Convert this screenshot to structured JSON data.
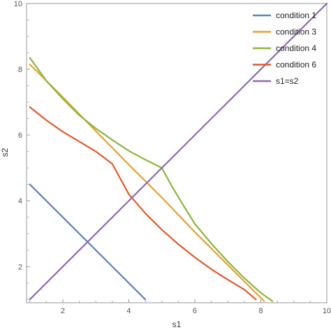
{
  "chart_data": {
    "type": "line",
    "title": "",
    "xlabel": "s1",
    "ylabel": "s2",
    "xlim": [
      0.9,
      10
    ],
    "ylim": [
      0.9,
      10
    ],
    "xticks": [
      2,
      4,
      6,
      8,
      10
    ],
    "yticks": [
      2,
      4,
      6,
      8,
      10
    ],
    "grid": false,
    "legend_position": "top-right",
    "series": [
      {
        "name": "condition 1",
        "color": "#5a82bd",
        "x": [
          1,
          4.5
        ],
        "y": [
          4.5,
          1
        ]
      },
      {
        "name": "condition 3",
        "color": "#e59f33",
        "x": [
          1,
          2.0,
          3.0,
          4.0,
          5.0,
          6.0,
          7.0,
          8.1
        ],
        "y": [
          8.15,
          7.15,
          6.12,
          5.1,
          4.1,
          3.05,
          2.05,
          0.95
        ]
      },
      {
        "name": "condition 4",
        "color": "#8bb63a",
        "x": [
          1,
          1.5,
          2.0,
          2.5,
          3.0,
          3.5,
          4.0,
          4.5,
          5.0,
          5.3,
          5.6,
          6.0,
          6.5,
          7.0,
          7.5,
          8.0,
          8.35
        ],
        "y": [
          8.35,
          7.65,
          7.1,
          6.6,
          6.2,
          5.85,
          5.52,
          5.25,
          5.0,
          4.45,
          3.95,
          3.3,
          2.7,
          2.15,
          1.65,
          1.2,
          0.95
        ]
      },
      {
        "name": "condition 6",
        "color": "#e3592b",
        "x": [
          1,
          1.5,
          2.0,
          2.5,
          3.0,
          3.5,
          4.0,
          4.5,
          5.0,
          5.5,
          6.0,
          6.5,
          7.0,
          7.5,
          7.85
        ],
        "y": [
          6.85,
          6.45,
          6.1,
          5.8,
          5.5,
          5.12,
          4.2,
          3.62,
          3.12,
          2.68,
          2.28,
          1.92,
          1.6,
          1.3,
          1.0
        ]
      },
      {
        "name": "s1=s2",
        "color": "#8c6ab0",
        "x": [
          1,
          10
        ],
        "y": [
          1,
          10
        ]
      }
    ]
  }
}
